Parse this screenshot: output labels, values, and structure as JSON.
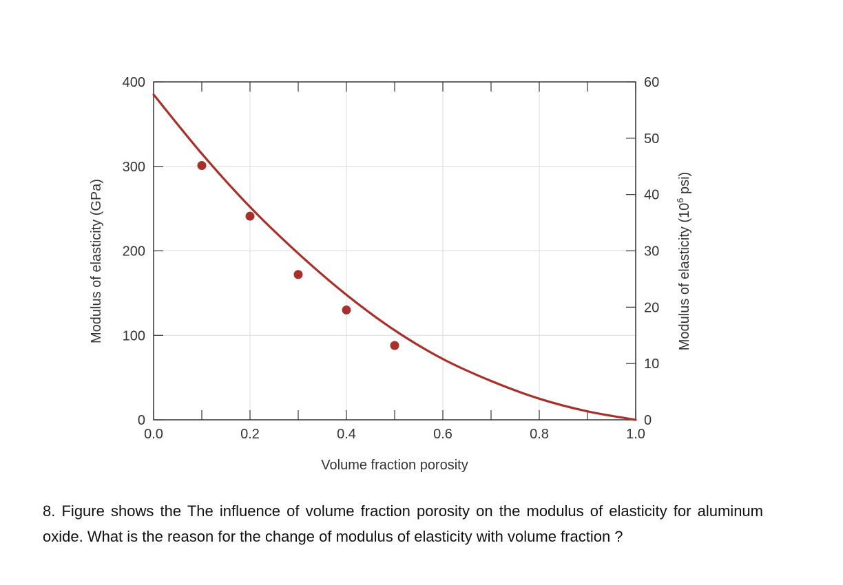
{
  "chart_data": {
    "type": "scatter",
    "title": "",
    "xlabel": "Volume fraction porosity",
    "ylabel": "Modulus of elasticity (GPa)",
    "ylabel_right_prefix": "Modulus of elasticity (10",
    "ylabel_right_sup": "6",
    "ylabel_right_suffix": " psi)",
    "xlim": [
      0,
      1.0
    ],
    "ylim": [
      0,
      400
    ],
    "ylim_right": [
      0,
      60
    ],
    "x_ticks": [
      "0.0",
      "0.2",
      "0.4",
      "0.6",
      "0.8",
      "1.0"
    ],
    "y_ticks": [
      "0",
      "100",
      "200",
      "300",
      "400"
    ],
    "y_right_ticks": [
      "0",
      "10",
      "20",
      "30",
      "40",
      "50",
      "60"
    ],
    "grid": true,
    "colors": {
      "series": "#a8302b",
      "grid": "#dcdcdc",
      "axis": "#333333"
    },
    "points": [
      {
        "x": 0.1,
        "y": 301
      },
      {
        "x": 0.2,
        "y": 241
      },
      {
        "x": 0.3,
        "y": 172
      },
      {
        "x": 0.4,
        "y": 130
      },
      {
        "x": 0.5,
        "y": 88
      }
    ],
    "curve": [
      {
        "x": 0.0,
        "y": 385
      },
      {
        "x": 0.1,
        "y": 315
      },
      {
        "x": 0.2,
        "y": 252
      },
      {
        "x": 0.3,
        "y": 197
      },
      {
        "x": 0.4,
        "y": 148
      },
      {
        "x": 0.5,
        "y": 106
      },
      {
        "x": 0.6,
        "y": 72
      },
      {
        "x": 0.7,
        "y": 46
      },
      {
        "x": 0.8,
        "y": 25
      },
      {
        "x": 0.9,
        "y": 10
      },
      {
        "x": 1.0,
        "y": 0
      }
    ]
  },
  "question": {
    "text": "8. Figure shows the The influence of volume fraction porosity on the modulus of elasticity for aluminum oxide.  What is the reason for the change of modulus of elasticity with volume fraction ?"
  }
}
